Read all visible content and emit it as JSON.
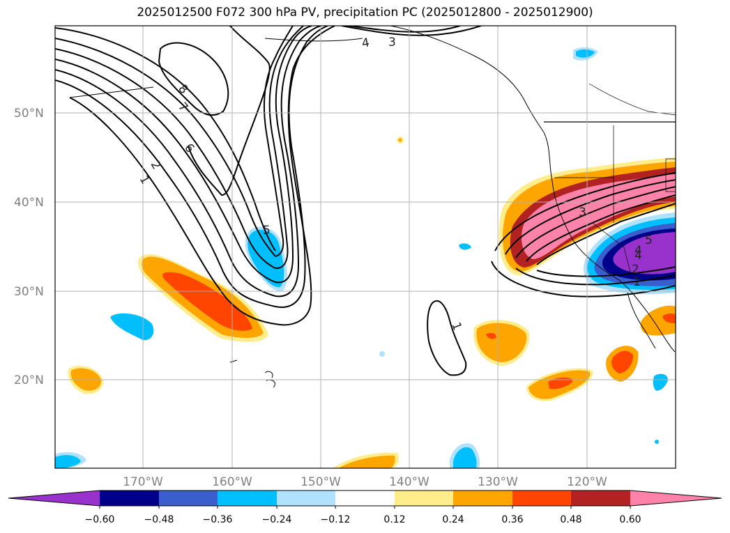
{
  "title": "2025012500 F072 300 hPa PV, precipitation PC (2025012800 - 2025012900)",
  "map": {
    "lat_labels": [
      "50°N",
      "40°N",
      "30°N",
      "20°N"
    ],
    "lon_labels": [
      "170°W",
      "160°W",
      "150°W",
      "140°W",
      "130°W",
      "120°W"
    ],
    "contour_labels": [
      "1",
      "2",
      "3",
      "4",
      "5",
      "6",
      "7",
      "8",
      "1",
      "3",
      "4",
      "5",
      "1",
      "2",
      "4"
    ]
  },
  "colorbar": {
    "ticks": [
      "−0.60",
      "−0.48",
      "−0.36",
      "−0.24",
      "−0.12",
      "0.12",
      "0.24",
      "0.36",
      "0.48",
      "0.60"
    ],
    "colors": [
      "#9932cc",
      "#00008b",
      "#3a5fcd",
      "#00bfff",
      "#b0e2ff",
      "#ffffff",
      "#ffec8b",
      "#ffa500",
      "#ff4500",
      "#b22222",
      "#ff82ab",
      "#ff82ab"
    ]
  }
}
